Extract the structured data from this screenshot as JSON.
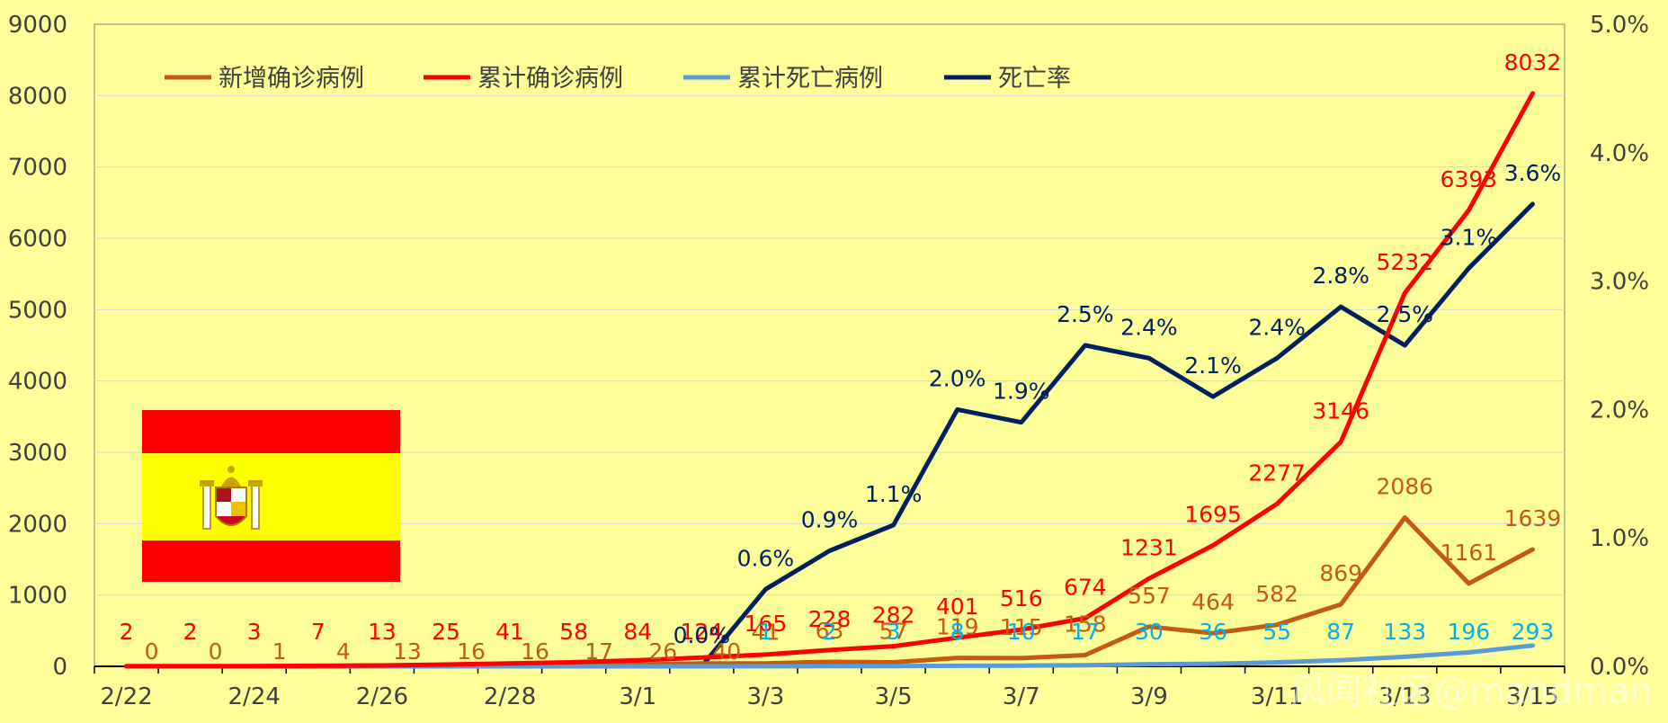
{
  "chart_data": {
    "type": "line",
    "categories": [
      "2/22",
      "2/23",
      "2/24",
      "2/25",
      "2/26",
      "2/27",
      "2/28",
      "2/29",
      "3/1",
      "3/2",
      "3/3",
      "3/4",
      "3/5",
      "3/6",
      "3/7",
      "3/8",
      "3/9",
      "3/10",
      "3/11",
      "3/12",
      "3/13",
      "3/14",
      "3/15"
    ],
    "x_tick_labels": [
      "2/22",
      "2/24",
      "2/26",
      "2/28",
      "3/1",
      "3/3",
      "3/5",
      "3/7",
      "3/9",
      "3/11",
      "3/13",
      "3/15"
    ],
    "y_left": {
      "min": 0,
      "max": 9000,
      "step": 1000,
      "ticks": [
        "0",
        "1000",
        "2000",
        "3000",
        "4000",
        "5000",
        "6000",
        "7000",
        "8000",
        "9000"
      ]
    },
    "y_right": {
      "min": 0,
      "max": 5.0,
      "step": 1.0,
      "ticks": [
        "0.0%",
        "1.0%",
        "2.0%",
        "3.0%",
        "4.0%",
        "5.0%"
      ]
    },
    "grid": true,
    "legend_position": "top",
    "series": [
      {
        "name": "新增确诊病例",
        "color": "#c55a11",
        "axis": "left",
        "values": [
          0,
          0,
          1,
          4,
          13,
          16,
          16,
          17,
          26,
          40,
          41,
          63,
          57,
          119,
          115,
          158,
          557,
          464,
          582,
          869,
          2086,
          1161,
          1639
        ],
        "labels": [
          "0",
          "0",
          "1",
          "4",
          "13",
          "16",
          "16",
          "17",
          "26",
          "40",
          "41",
          "63",
          "57",
          "119",
          "115",
          "158",
          "557",
          "464",
          "582",
          "869",
          "2086",
          "1161",
          "1639"
        ]
      },
      {
        "name": "累计确诊病例",
        "color": "#ff0000",
        "axis": "left",
        "values": [
          2,
          2,
          3,
          7,
          13,
          25,
          41,
          58,
          84,
          124,
          165,
          228,
          282,
          401,
          516,
          674,
          1231,
          1695,
          2277,
          3146,
          5232,
          6393,
          8032
        ],
        "labels": [
          "2",
          "2",
          "3",
          "7",
          "13",
          "25",
          "41",
          "58",
          "84",
          "124",
          "165",
          "228",
          "282",
          "401",
          "516",
          "674",
          "1231",
          "1695",
          "2277",
          "3146",
          "5232",
          "6393",
          "8032"
        ]
      },
      {
        "name": "累计死亡病例",
        "color": "#5b9bd5",
        "label_color": "#00b0f0",
        "axis": "left",
        "values": [
          0,
          0,
          0,
          0,
          0,
          0,
          0,
          0,
          0,
          0,
          1,
          2,
          3,
          8,
          10,
          17,
          30,
          36,
          55,
          87,
          133,
          196,
          293
        ],
        "labels": [
          "",
          "",
          "",
          "",
          "",
          "",
          "",
          "",
          "",
          "",
          "1",
          "2",
          "3",
          "8",
          "10",
          "17",
          "30",
          "36",
          "55",
          "87",
          "133",
          "196",
          "293"
        ]
      },
      {
        "name": "死亡率",
        "color": "#002060",
        "axis": "right",
        "start_index": 9,
        "values": [
          null,
          null,
          null,
          null,
          null,
          null,
          null,
          null,
          null,
          0.0,
          0.6,
          0.9,
          1.1,
          2.0,
          1.9,
          2.5,
          2.4,
          2.1,
          2.4,
          2.8,
          2.5,
          3.1,
          3.6
        ],
        "labels": [
          "",
          "",
          "",
          "",
          "",
          "",
          "",
          "",
          "",
          "0.0%",
          "0.6%",
          "0.9%",
          "1.1%",
          "2.0%",
          "1.9%",
          "2.5%",
          "2.4%",
          "2.1%",
          "2.4%",
          "2.8%",
          "2.5%",
          "3.1%",
          "3.6%"
        ]
      }
    ]
  },
  "watermark": "风闻社区@mandman"
}
